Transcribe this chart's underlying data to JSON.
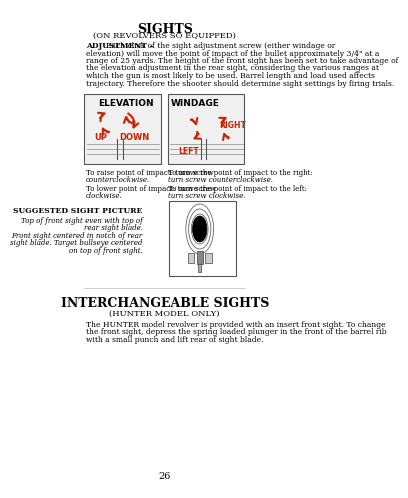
{
  "title": "SIGHTS",
  "subtitle": "(ON REVOLVERS SO EQUIPPED)",
  "body_text": "ADJUSTMENT – Each click of the sight adjustment screw (either windage or\nelevation) will move the point of impact of the bullet approximately 3/4\" at a\nrange of 25 yards. The height of the front sight has been set to take advantage of\nthe elevation adjustment in the rear sight, considering the various ranges at\nwhich the gun is most likely to be used. Barrel length and load used affects\ntrajectory. Therefore the shooter should determine sight settings by firing trials.",
  "elevation_label": "ELEVATION",
  "windage_label": "WINDAGE",
  "up_label": "UP",
  "down_label": "DOWN",
  "right_label": "RIGHT",
  "left_label": "LEFT",
  "elev_caption1": "To raise point of impact: turn screw\ncounterclockwise.",
  "elev_caption2": "To lower point of impact: turn screw\nclockwise.",
  "wind_caption1": "To move the point of impact to the right:\nturn screw counterclockwise.",
  "wind_caption2": "To move the point of impact to the left:\nturn screw clockwise.",
  "suggested_title": "SUGGESTED SIGHT PICTURE",
  "suggested_text": "Top of front sight even with top of\nrear sight blade.\nFront sight centered in notch of rear\nsight blade. Target bullseye centered\non top of front sight.",
  "section2_title": "INTERCHANGEABLE SIGHTS",
  "section2_subtitle": "(HUNTER MODEL ONLY)",
  "section2_body": "The HUNTER model revolver is provided with an insert front sight. To change\nthe front sight, depress the spring loaded plunger in the front of the barrel rib\nwith a small punch and lift rear of sight blade.",
  "page_number": "26",
  "bg_color": "#ffffff",
  "text_color": "#000000",
  "red_color": "#cc2200",
  "underline_words": [
    "approximately",
    "raise",
    "counterclockwise",
    "lower",
    "clockwise",
    "right",
    "counterclockwise",
    "left",
    "clockwise"
  ]
}
